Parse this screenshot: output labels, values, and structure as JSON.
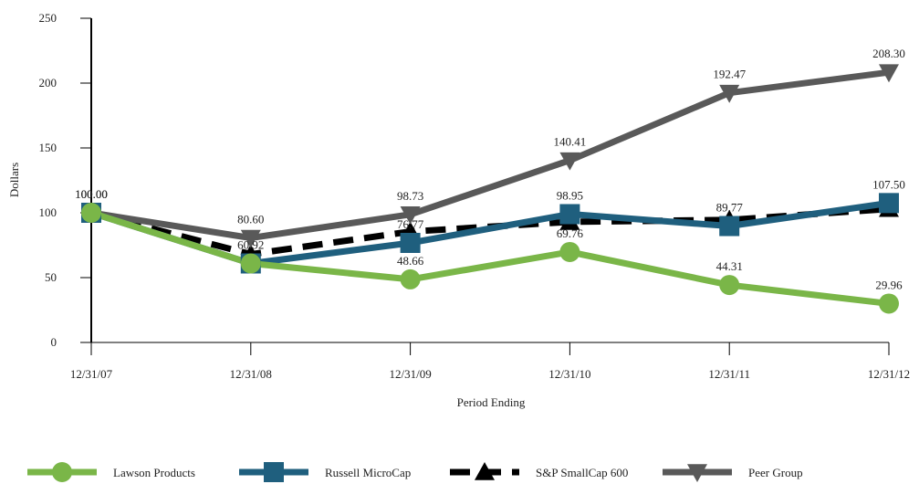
{
  "chart_data": {
    "type": "line",
    "ylabel": "Dollars",
    "xlabel": "Period Ending",
    "categories": [
      "12/31/07",
      "12/31/08",
      "12/31/09",
      "12/31/10",
      "12/31/11",
      "12/31/12"
    ],
    "ylim": [
      0,
      250
    ],
    "yticks": [
      0,
      50,
      100,
      150,
      200,
      250
    ],
    "grid": false,
    "legend_position": "bottom",
    "series": [
      {
        "name": "Lawson Products",
        "values": [
          100.0,
          60.92,
          48.66,
          69.76,
          44.31,
          29.96
        ],
        "labels": [
          "100.00",
          "60.92",
          "48.66",
          "69.76",
          "44.31",
          "29.96"
        ],
        "color": "#7ab648",
        "marker": "circle",
        "dash": "solid"
      },
      {
        "name": "Russell MicroCap",
        "values": [
          100.0,
          60.92,
          76.77,
          98.95,
          89.77,
          107.5
        ],
        "labels": [
          "100.00",
          "",
          "76.77",
          "98.95",
          "89.77",
          "107.50"
        ],
        "color": "#1f5f7e",
        "marker": "square",
        "dash": "solid"
      },
      {
        "name": "S&P SmallCap 600",
        "values": [
          100.0,
          68.0,
          85.5,
          93.0,
          94.5,
          103.0
        ],
        "labels": [
          "",
          "",
          "",
          "",
          "",
          ""
        ],
        "color": "#000000",
        "marker": "triangle-up",
        "dash": "dashed"
      },
      {
        "name": "Peer Group",
        "values": [
          100.0,
          80.6,
          98.73,
          140.41,
          192.47,
          208.3
        ],
        "labels": [
          "",
          "80.60",
          "98.73",
          "140.41",
          "192.47",
          "208.30"
        ],
        "color": "#595959",
        "marker": "triangle-down",
        "dash": "solid"
      }
    ]
  }
}
